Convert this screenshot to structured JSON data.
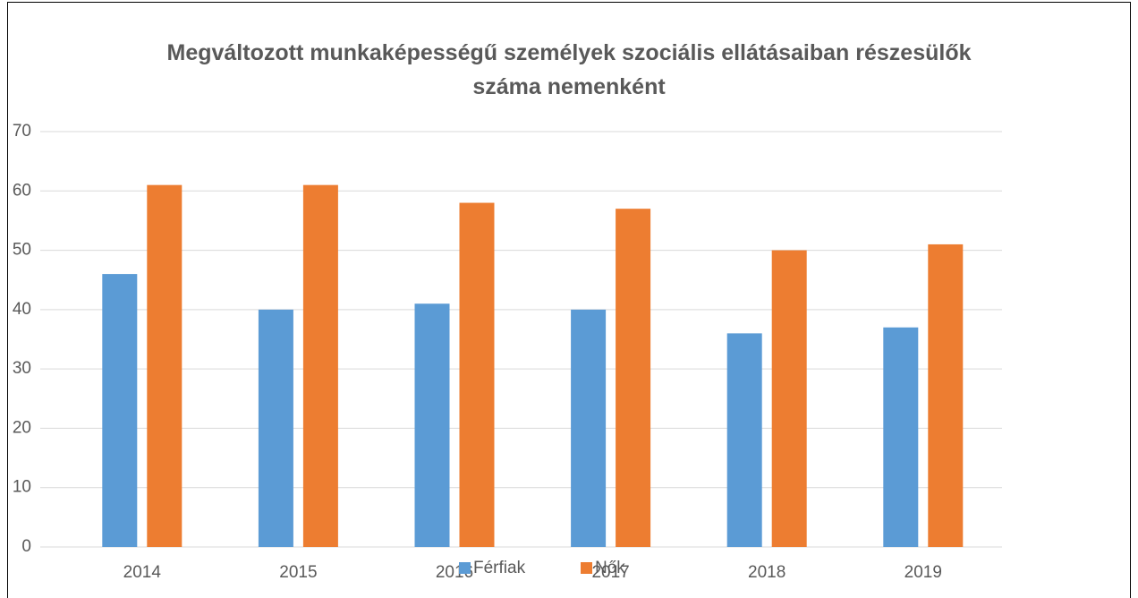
{
  "chart_data": {
    "type": "bar",
    "title": "Megváltozott munkaképességű személyek szociális ellátásaiban részesülők száma nemenként",
    "categories": [
      "2014",
      "2015",
      "2016",
      "2017",
      "2018",
      "2019"
    ],
    "series": [
      {
        "name": "Férfiak",
        "color": "#5b9bd5",
        "values": [
          46,
          40,
          41,
          40,
          36,
          37
        ]
      },
      {
        "name": "Nők",
        "color": "#ed7d31",
        "values": [
          61,
          61,
          58,
          57,
          50,
          51
        ]
      }
    ],
    "ylim": [
      0,
      70
    ],
    "yticks": [
      0,
      10,
      20,
      30,
      40,
      50,
      60,
      70
    ],
    "grid": true,
    "legend": "bottom"
  }
}
